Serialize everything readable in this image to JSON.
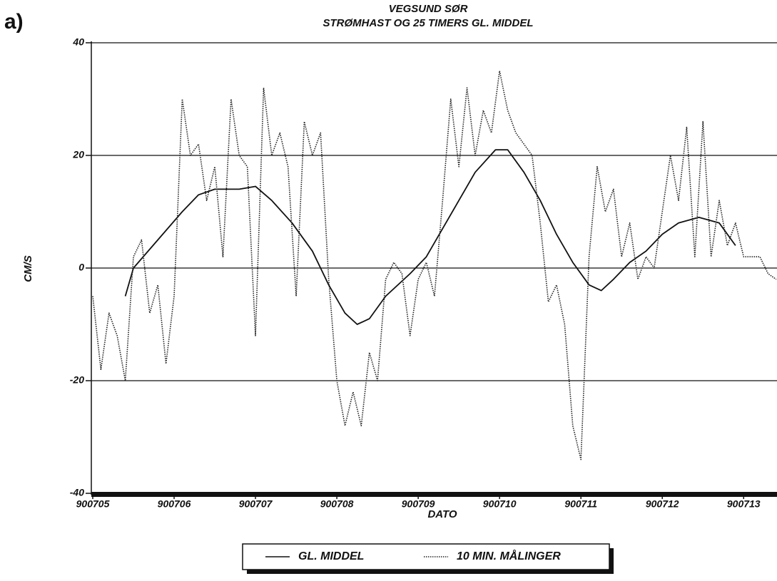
{
  "chart_data": {
    "type": "line",
    "panel_label": "a)",
    "title": "VEGSUND SØR",
    "subtitle": "STRØMHAST OG 25 TIMERS GL. MIDDEL",
    "x_label": "DATO",
    "y_label": "CM/S",
    "xlim": [
      900705,
      900713.41
    ],
    "xticks": [
      900705,
      900706,
      900707,
      900708,
      900709,
      900710,
      900711,
      900712,
      900713
    ],
    "ylim": [
      -40,
      40
    ],
    "yticks": [
      -40,
      -20,
      0,
      20,
      40
    ],
    "grid": true,
    "legend": "bottom",
    "series": [
      {
        "name": "GL. MIDDEL",
        "color": "#111111",
        "style": "solid",
        "x": [
          900705.4,
          900705.5,
          900705.8,
          900706.1,
          900706.3,
          900706.5,
          900706.8,
          900707.0,
          900707.2,
          900707.45,
          900707.7,
          900707.9,
          900708.1,
          900708.25,
          900708.4,
          900708.6,
          900708.9,
          900709.1,
          900709.3,
          900709.5,
          900709.7,
          900709.95,
          900710.1,
          900710.3,
          900710.5,
          900710.7,
          900710.9,
          900711.1,
          900711.25,
          900711.4,
          900711.6,
          900711.8,
          900712.0,
          900712.2,
          900712.45,
          900712.7,
          900712.9
        ],
        "values": [
          -5,
          0,
          5,
          10,
          13,
          14,
          14,
          14.5,
          12,
          8,
          3,
          -3,
          -8,
          -10,
          -9,
          -5,
          -1,
          2,
          7,
          12,
          17,
          21,
          21,
          17,
          12,
          6,
          1,
          -3,
          -4,
          -2,
          1,
          3,
          6,
          8,
          9,
          8,
          4
        ]
      },
      {
        "name": "10 MIN. MÅLINGER",
        "color": "#222222",
        "style": "dotted",
        "x": [
          900705.0,
          900705.1,
          900705.2,
          900705.3,
          900705.4,
          900705.5,
          900705.6,
          900705.7,
          900705.8,
          900705.9,
          900706.0,
          900706.1,
          900706.2,
          900706.3,
          900706.4,
          900706.5,
          900706.6,
          900706.7,
          900706.8,
          900706.9,
          900707.0,
          900707.1,
          900707.2,
          900707.3,
          900707.4,
          900707.5,
          900707.6,
          900707.7,
          900707.8,
          900707.9,
          900708.0,
          900708.1,
          900708.2,
          900708.3,
          900708.4,
          900708.5,
          900708.6,
          900708.7,
          900708.8,
          900708.9,
          900709.0,
          900709.1,
          900709.2,
          900709.3,
          900709.4,
          900709.5,
          900709.6,
          900709.7,
          900709.8,
          900709.9,
          900710.0,
          900710.1,
          900710.2,
          900710.3,
          900710.4,
          900710.5,
          900710.6,
          900710.7,
          900710.8,
          900710.9,
          900711.0,
          900711.1,
          900711.2,
          900711.3,
          900711.4,
          900711.5,
          900711.6,
          900711.7,
          900711.8,
          900711.9,
          900712.0,
          900712.1,
          900712.2,
          900712.3,
          900712.4,
          900712.5,
          900712.6,
          900712.7,
          900712.8,
          900712.9,
          900713.0,
          900713.1,
          900713.2,
          900713.3,
          900713.4
        ],
        "values": [
          -5,
          -18,
          -8,
          -12,
          -20,
          2,
          5,
          -8,
          -3,
          -17,
          -5,
          30,
          20,
          22,
          12,
          18,
          2,
          30,
          20,
          18,
          -12,
          32,
          20,
          24,
          18,
          -5,
          26,
          20,
          24,
          -2,
          -20,
          -28,
          -22,
          -28,
          -15,
          -20,
          -2,
          1,
          -1,
          -12,
          -2,
          1,
          -5,
          12,
          30,
          18,
          32,
          20,
          28,
          24,
          35,
          28,
          24,
          22,
          20,
          8,
          -6,
          -3,
          -10,
          -28,
          -34,
          2,
          18,
          10,
          14,
          2,
          8,
          -2,
          2,
          0,
          10,
          20,
          12,
          25,
          2,
          26,
          2,
          12,
          4,
          8,
          2,
          2,
          2,
          -1,
          -2
        ]
      }
    ]
  }
}
